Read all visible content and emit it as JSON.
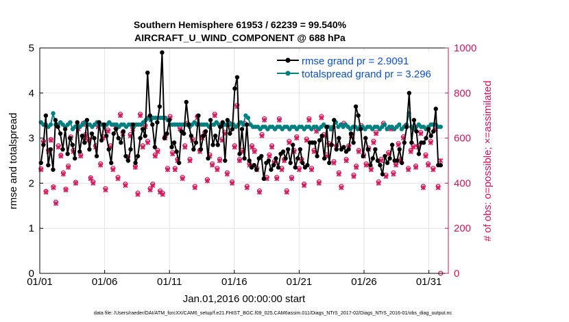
{
  "chart_data": {
    "type": "line",
    "title_line1": "Southern Hemisphere 61953 / 62239 = 99.540%",
    "title_line2": "AIRCRAFT_U_WIND_COMPONENT @ 688 hPa",
    "xlabel": "Jan.01,2016 00:00:00 start",
    "ylabel_left": "rmse and totalspread",
    "ylabel_right": "# of obs: o=possible; ×=assimilated",
    "footer": "data file: /Users/raeder/DAI/ATM_forcXX/CAM6_setup/f.e21.FHIST_BGC.f09_025.CAM6assim.011/Diags_NTrS_2017-02/Diags_NTrS_2016-01/obs_diag_output.nc",
    "xlim": [
      0,
      31.5
    ],
    "ylim_left": [
      0,
      5
    ],
    "ylim_right": [
      0,
      1000
    ],
    "x_ticks": [
      {
        "x": 0,
        "label": "01/01"
      },
      {
        "x": 5,
        "label": "01/06"
      },
      {
        "x": 10,
        "label": "01/11"
      },
      {
        "x": 15,
        "label": "01/16"
      },
      {
        "x": 20,
        "label": "01/21"
      },
      {
        "x": 25,
        "label": "01/26"
      },
      {
        "x": 30,
        "label": "01/31"
      }
    ],
    "y_ticks_left": [
      "0",
      "1",
      "2",
      "3",
      "4",
      "5"
    ],
    "y_ticks_right": [
      "0",
      "200",
      "400",
      "600",
      "800",
      "1000"
    ],
    "legend_position": "top-right",
    "colors": {
      "rmse": "#000000",
      "spread": "#008080",
      "obs": "#d6145a",
      "legend_text": "#0b4fd0"
    },
    "series": [
      {
        "name": "rmse grand pr = 2.9091",
        "key": "rmse",
        "values": [
          2.45,
          2.85,
          3.5,
          2.4,
          2.75,
          2.3,
          3.4,
          3.25,
          3.1,
          2.75,
          3.2,
          2.65,
          3.0,
          2.85,
          2.55,
          3.35,
          2.7,
          3.05,
          2.9,
          3.4,
          2.75,
          3.1,
          3.0,
          2.6,
          3.35,
          2.95,
          3.3,
          3.05,
          2.75,
          2.45,
          3.1,
          3.2,
          3.0,
          2.9,
          3.15,
          2.6,
          2.5,
          2.75,
          3.3,
          2.45,
          2.6,
          3.0,
          3.2,
          3.05,
          4.45,
          3.5,
          3.3,
          2.8,
          3.35,
          3.7,
          4.9,
          3.0,
          3.1,
          3.4,
          2.8,
          2.9,
          2.7,
          2.45,
          3.15,
          3.1,
          3.8,
          3.3,
          3.05,
          2.75,
          2.9,
          3.5,
          2.75,
          3.05,
          3.15,
          2.55,
          3.4,
          2.85,
          3.05,
          2.85,
          3.25,
          3.35,
          2.5,
          3.4,
          3.1,
          3.2,
          4.1,
          4.35,
          2.65,
          3.2,
          2.55,
          3.3,
          2.5,
          2.35,
          2.4,
          2.3,
          2.55,
          2.6,
          2.1,
          2.45,
          2.5,
          2.3,
          2.4,
          2.55,
          2.35,
          2.65,
          2.7,
          2.55,
          2.75,
          2.45,
          2.85,
          2.35,
          2.55,
          2.75,
          2.45,
          2.35,
          2.4,
          2.9,
          2.9,
          2.9,
          2.6,
          2.95,
          3.05,
          2.55,
          3.25,
          2.45,
          2.85,
          3.4,
          2.75,
          3.0,
          2.75,
          2.8,
          2.7,
          2.75,
          3.1,
          2.9,
          3.7,
          3.5,
          3.2,
          2.6,
          3.0,
          2.75,
          2.4,
          2.55,
          2.75,
          2.5,
          2.4,
          2.2,
          2.6,
          2.45,
          2.55,
          2.85,
          2.5,
          2.5,
          2.75,
          2.45,
          2.9,
          3.25,
          4.0,
          2.9,
          3.4,
          3.15,
          2.65,
          2.9,
          2.9,
          3.0,
          3.2,
          3.05,
          3.15,
          3.65,
          2.4,
          2.4
        ]
      },
      {
        "name": "totalspread grand pr = 3.296",
        "key": "spread",
        "values": [
          3.35,
          3.3,
          3.3,
          3.25,
          3.3,
          3.55,
          3.3,
          3.3,
          3.35,
          3.3,
          3.25,
          3.3,
          3.35,
          3.2,
          3.25,
          3.3,
          3.25,
          3.3,
          3.35,
          3.3,
          3.3,
          3.25,
          3.3,
          3.35,
          3.3,
          3.3,
          3.25,
          3.3,
          3.35,
          3.3,
          3.3,
          3.3,
          3.25,
          3.3,
          3.3,
          3.25,
          3.3,
          3.3,
          3.25,
          3.3,
          3.3,
          3.3,
          3.35,
          3.4,
          3.45,
          3.4,
          3.45,
          3.45,
          3.45,
          3.45,
          3.45,
          3.45,
          3.4,
          3.3,
          3.3,
          3.3,
          3.3,
          3.3,
          3.3,
          3.3,
          3.3,
          3.25,
          3.3,
          3.35,
          3.3,
          3.3,
          3.3,
          3.3,
          3.3,
          3.25,
          3.3,
          3.3,
          3.35,
          3.3,
          3.3,
          3.3,
          3.3,
          3.35,
          3.3,
          3.3,
          3.25,
          3.3,
          3.35,
          3.3,
          3.5,
          3.45,
          3.3,
          3.25,
          3.25,
          3.25,
          3.2,
          3.25,
          3.25,
          3.2,
          3.25,
          3.25,
          3.2,
          3.25,
          3.25,
          3.2,
          3.25,
          3.25,
          3.2,
          3.25,
          3.25,
          3.2,
          3.25,
          3.25,
          3.2,
          3.25,
          3.25,
          3.2,
          3.25,
          3.25,
          3.2,
          3.25,
          3.3,
          3.25,
          3.25,
          3.2,
          3.25,
          3.35,
          3.25,
          3.3,
          3.25,
          3.3,
          3.25,
          3.2,
          3.25,
          3.25,
          3.2,
          3.25,
          3.25,
          3.2,
          3.25,
          3.25,
          3.2,
          3.25,
          3.25,
          3.2,
          3.25,
          3.3,
          3.2,
          3.25,
          3.25,
          3.2,
          3.25,
          3.3,
          3.2,
          3.25,
          3.3,
          3.55,
          3.25,
          3.2,
          3.25,
          3.3,
          3.25,
          3.25,
          3.2,
          3.25,
          3.3,
          3.3,
          3.3,
          3.25,
          3.25
        ]
      },
      {
        "name": "# of obs assimilated",
        "key": "obs",
        "values": [
          460,
          580,
          360,
          540,
          590,
          380,
          310,
          560,
          520,
          440,
          370,
          470,
          600,
          540,
          400,
          640,
          520,
          660,
          610,
          590,
          420,
          400,
          560,
          650,
          480,
          600,
          370,
          630,
          560,
          460,
          650,
          420,
          700,
          620,
          390,
          510,
          610,
          640,
          470,
          350,
          700,
          560,
          650,
          580,
          370,
          390,
          520,
          540,
          360,
          350,
          600,
          460,
          690,
          530,
          460,
          500,
          640,
          420,
          560,
          660,
          500,
          590,
          380,
          690,
          540,
          600,
          620,
          410,
          520,
          480,
          700,
          460,
          500,
          590,
          620,
          440,
          660,
          400,
          560,
          740,
          500,
          540,
          660,
          380,
          480,
          560,
          540,
          460,
          360,
          610,
          680,
          420,
          520,
          560,
          490,
          420,
          680,
          460,
          500,
          360,
          580,
          420,
          540,
          600,
          460,
          500,
          390,
          590,
          680,
          460,
          540,
          630,
          400,
          690,
          610,
          520,
          570,
          640,
          490,
          560,
          440,
          380,
          660,
          500,
          560,
          610,
          430,
          470,
          540,
          650,
          520,
          480,
          550,
          460,
          580,
          620,
          400,
          500,
          660,
          430,
          530,
          640,
          440,
          480,
          570,
          500,
          600,
          650,
          460,
          540,
          560,
          470,
          560,
          620,
          380,
          520,
          480,
          580,
          460,
          640,
          380,
          500
        ]
      },
      {
        "name": "# of obs possible",
        "key": "obs_possible",
        "values": [
          464,
          586,
          364,
          546,
          594,
          384,
          316,
          566,
          524,
          446,
          374,
          476,
          606,
          546,
          404,
          646,
          526,
          666,
          616,
          596,
          424,
          406,
          566,
          656,
          486,
          606,
          376,
          636,
          566,
          466,
          656,
          426,
          706,
          626,
          396,
          516,
          616,
          646,
          476,
          356,
          706,
          566,
          656,
          586,
          376,
          396,
          526,
          546,
          366,
          356,
          606,
          466,
          696,
          536,
          466,
          506,
          646,
          426,
          566,
          666,
          506,
          596,
          386,
          696,
          546,
          606,
          626,
          416,
          526,
          486,
          706,
          466,
          506,
          596,
          626,
          446,
          666,
          406,
          566,
          746,
          506,
          546,
          666,
          386,
          486,
          566,
          546,
          466,
          366,
          616,
          686,
          426,
          526,
          566,
          496,
          426,
          686,
          466,
          506,
          366,
          586,
          426,
          546,
          606,
          466,
          506,
          396,
          596,
          686,
          466,
          546,
          636,
          406,
          696,
          616,
          526,
          576,
          646,
          496,
          566,
          446,
          386,
          666,
          506,
          566,
          616,
          436,
          476,
          546,
          656,
          526,
          486,
          556,
          466,
          586,
          626,
          406,
          506,
          666,
          436,
          536,
          646,
          446,
          486,
          576,
          506,
          606,
          656,
          466,
          546,
          566,
          476,
          566,
          626,
          386,
          526,
          486,
          586,
          466,
          646,
          386,
          0
        ]
      }
    ]
  }
}
